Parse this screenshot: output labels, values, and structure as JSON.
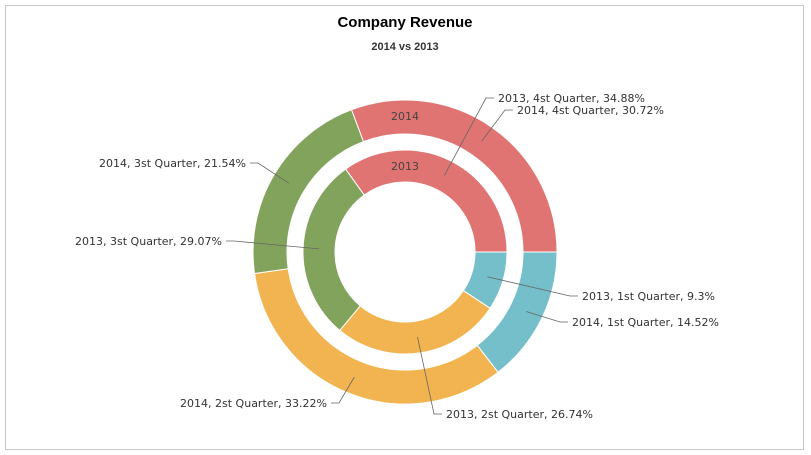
{
  "chart_data": {
    "type": "pie",
    "title": "Company Revenue",
    "subtitle": "2014 vs 2013",
    "categories": [
      "1st Quarter",
      "2st Quarter",
      "3st Quarter",
      "4st Quarter"
    ],
    "series": [
      {
        "name": "2014",
        "values": [
          14.52,
          33.22,
          21.54,
          30.72
        ],
        "labels": [
          "2014, 1st Quarter, 14.52%",
          "2014, 2st Quarter, 33.22%",
          "2014, 3st Quarter, 21.54%",
          "2014, 4st Quarter, 30.72%"
        ]
      },
      {
        "name": "2013",
        "values": [
          9.3,
          26.74,
          29.07,
          34.88
        ],
        "labels": [
          "2013, 1st Quarter, 9.3%",
          "2013, 2st Quarter, 26.74%",
          "2013, 3st Quarter, 29.07%",
          "2013, 4st Quarter, 34.88%"
        ]
      }
    ],
    "colors": [
      "#74bfc9",
      "#f2b450",
      "#82a35b",
      "#e07472"
    ],
    "legend": "none"
  }
}
